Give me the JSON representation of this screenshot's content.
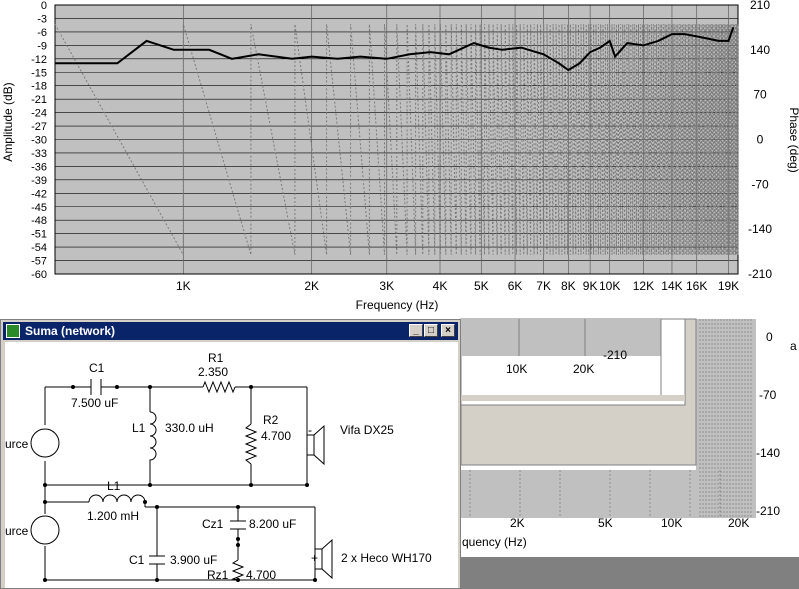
{
  "chart": {
    "y_left_ticks": [
      "0",
      "-3",
      "-6",
      "-9",
      "-12",
      "-15",
      "-18",
      "-21",
      "-24",
      "-27",
      "-30",
      "-33",
      "-36",
      "-39",
      "-42",
      "-45",
      "-48",
      "-51",
      "-54",
      "-57",
      "-60"
    ],
    "y_right_ticks": [
      "210",
      "140",
      "70",
      "0",
      "-70",
      "-140",
      "-210"
    ],
    "x_ticks": [
      "1K",
      "2K",
      "3K",
      "4K",
      "5K",
      "6K",
      "7K",
      "8K",
      "9K",
      "10K",
      "12K",
      "14K",
      "16K",
      "19K"
    ],
    "ylabel_left": "Amplitude (dB)",
    "ylabel_right": "Phase (deg)",
    "xlabel": "Frequency (Hz)"
  },
  "chart_data": {
    "type": "line",
    "xlabel": "Frequency (Hz)",
    "ylabel": "Amplitude (dB)",
    "y2label": "Phase (deg)",
    "xscale": "log",
    "xlim": [
      500,
      20000
    ],
    "ylim": [
      -60,
      0
    ],
    "y2lim": [
      -210,
      210
    ],
    "grid": true,
    "series": [
      {
        "axis": "left",
        "color": "#000000",
        "x": [
          500,
          700,
          820,
          950,
          1150,
          1300,
          1500,
          1800,
          2000,
          2300,
          2600,
          3000,
          3400,
          3800,
          4200,
          4800,
          5200,
          5600,
          6200,
          7000,
          7600,
          8000,
          8500,
          9000,
          9500,
          10000,
          10300,
          11000,
          12000,
          13000,
          14000,
          15000,
          16000,
          17000,
          18000,
          19000,
          19500
        ],
        "y": [
          -13,
          -13,
          -8,
          -10,
          -10,
          -12,
          -11,
          -12,
          -11.5,
          -12,
          -11.5,
          -12,
          -11,
          -10.5,
          -11,
          -8.5,
          -9.5,
          -10,
          -9.5,
          -11,
          -13,
          -14.5,
          -13,
          -10.5,
          -9.5,
          -8,
          -11.5,
          -8.5,
          -9,
          -8,
          -6.5,
          -6.5,
          -7,
          -7.5,
          -8,
          -8,
          -5
        ]
      }
    ]
  },
  "bg_window": {
    "x_ticks_small": [
      "10K",
      "20K"
    ],
    "phase_label": "-210",
    "right_ticks": [
      "0",
      "-70",
      "-140",
      "-210"
    ],
    "x_ticks_large": [
      "2K",
      "5K",
      "10K",
      "20K"
    ],
    "xlabel_partial": "quency (Hz)",
    "edge_char": "a"
  },
  "network_window": {
    "title": "Suma (network)",
    "buttons": {
      "minimize": "_",
      "maximize": "□",
      "close": "×"
    },
    "circuit1": {
      "source_label": "urce",
      "c1": {
        "name": "C1",
        "value": "7.500 uF"
      },
      "r1": {
        "name": "R1",
        "value": "2.350"
      },
      "l1": {
        "name": "L1",
        "value": "330.0 uH"
      },
      "r2": {
        "name": "R2",
        "value": "4.700"
      },
      "speaker": "Vifa DX25",
      "polarity": "-"
    },
    "circuit2": {
      "source_label": "urce",
      "l1": {
        "name": "L1",
        "value": "1.200 mH"
      },
      "c1": {
        "name": "C1",
        "value": "3.900 uF"
      },
      "cz1": {
        "name": "Cz1",
        "value": "8.200 uF"
      },
      "rz1": {
        "name": "Rz1",
        "value": "4.700"
      },
      "speaker": "2 x Heco WH170",
      "polarity": "+"
    }
  }
}
